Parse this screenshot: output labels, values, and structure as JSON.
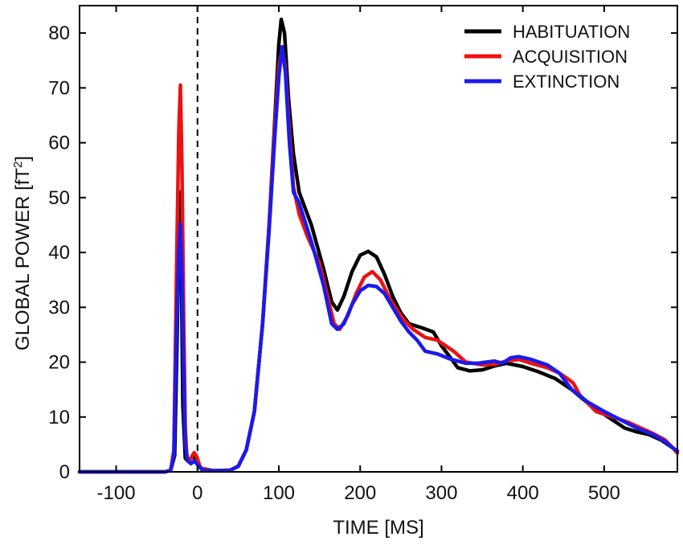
{
  "chart_data": {
    "type": "line",
    "xlabel": "TIME [MS]",
    "ylabel": "GLOBAL POWER [fT",
    "ylabel_superscript": "2",
    "ylabel_suffix": "]",
    "xlim": [
      -145,
      590
    ],
    "ylim": [
      0,
      85
    ],
    "xticks": [
      -100,
      0,
      100,
      200,
      300,
      400,
      500
    ],
    "yticks": [
      0,
      10,
      20,
      30,
      40,
      50,
      60,
      70,
      80
    ],
    "xtick_labels": [
      "-100",
      "0",
      "100",
      "200",
      "300",
      "400",
      "500"
    ],
    "ytick_labels": [
      "0",
      "10",
      "20",
      "30",
      "40",
      "50",
      "60",
      "70",
      "80"
    ],
    "stimulus_onset_x": 0,
    "grid": false,
    "legend_position": "top-right",
    "series": [
      {
        "name": "HABITUATION",
        "color": "#000000",
        "points": [
          [
            -145,
            0
          ],
          [
            -40,
            0
          ],
          [
            -33,
            0.3
          ],
          [
            -28,
            3
          ],
          [
            -25,
            25
          ],
          [
            -22,
            51
          ],
          [
            -20,
            40
          ],
          [
            -18,
            12
          ],
          [
            -15,
            2.5
          ],
          [
            -12,
            2
          ],
          [
            -8,
            2.5
          ],
          [
            -5,
            2.8
          ],
          [
            -2,
            2
          ],
          [
            2,
            1.2
          ],
          [
            5,
            0.6
          ],
          [
            20,
            0.2
          ],
          [
            40,
            0.3
          ],
          [
            50,
            1
          ],
          [
            60,
            4
          ],
          [
            70,
            11
          ],
          [
            80,
            27
          ],
          [
            88,
            45
          ],
          [
            95,
            64
          ],
          [
            100,
            78
          ],
          [
            103,
            82.5
          ],
          [
            107,
            80
          ],
          [
            112,
            68
          ],
          [
            118,
            58
          ],
          [
            125,
            51
          ],
          [
            140,
            45
          ],
          [
            155,
            37
          ],
          [
            165,
            31
          ],
          [
            172,
            29.5
          ],
          [
            180,
            32
          ],
          [
            190,
            36.5
          ],
          [
            200,
            39.5
          ],
          [
            210,
            40.2
          ],
          [
            220,
            39.2
          ],
          [
            230,
            36
          ],
          [
            240,
            32
          ],
          [
            250,
            29
          ],
          [
            260,
            27
          ],
          [
            275,
            26.3
          ],
          [
            290,
            25.5
          ],
          [
            300,
            23
          ],
          [
            310,
            21
          ],
          [
            320,
            19
          ],
          [
            335,
            18.4
          ],
          [
            350,
            18.6
          ],
          [
            365,
            19.3
          ],
          [
            380,
            19.8
          ],
          [
            400,
            19.2
          ],
          [
            420,
            18.2
          ],
          [
            440,
            17
          ],
          [
            460,
            15
          ],
          [
            480,
            12.5
          ],
          [
            500,
            10.5
          ],
          [
            510,
            9.5
          ],
          [
            525,
            8
          ],
          [
            540,
            7.3
          ],
          [
            555,
            6.8
          ],
          [
            570,
            5.8
          ],
          [
            585,
            4.3
          ],
          [
            590,
            3.8
          ]
        ]
      },
      {
        "name": "ACQUISITION",
        "color": "#ee1111",
        "points": [
          [
            -145,
            0
          ],
          [
            -40,
            0
          ],
          [
            -33,
            0.3
          ],
          [
            -29,
            4
          ],
          [
            -26,
            35
          ],
          [
            -23,
            62
          ],
          [
            -21,
            70.5
          ],
          [
            -19,
            55
          ],
          [
            -17,
            28
          ],
          [
            -15,
            8
          ],
          [
            -13,
            2.5
          ],
          [
            -10,
            2
          ],
          [
            -7,
            2.8
          ],
          [
            -4,
            3.5
          ],
          [
            -1,
            2.8
          ],
          [
            3,
            1
          ],
          [
            6,
            0.5
          ],
          [
            20,
            0.2
          ],
          [
            40,
            0.3
          ],
          [
            50,
            1
          ],
          [
            60,
            4
          ],
          [
            70,
            11
          ],
          [
            80,
            27
          ],
          [
            88,
            45
          ],
          [
            95,
            63
          ],
          [
            100,
            74
          ],
          [
            104,
            77
          ],
          [
            108,
            74
          ],
          [
            113,
            62
          ],
          [
            118,
            52
          ],
          [
            125,
            47
          ],
          [
            135,
            43
          ],
          [
            150,
            38
          ],
          [
            160,
            32
          ],
          [
            168,
            27
          ],
          [
            175,
            26
          ],
          [
            185,
            28.5
          ],
          [
            195,
            32.5
          ],
          [
            205,
            35.5
          ],
          [
            215,
            36.5
          ],
          [
            225,
            35
          ],
          [
            235,
            32
          ],
          [
            245,
            29.5
          ],
          [
            255,
            27.5
          ],
          [
            265,
            26
          ],
          [
            280,
            24.5
          ],
          [
            295,
            24
          ],
          [
            305,
            23
          ],
          [
            315,
            22
          ],
          [
            330,
            20
          ],
          [
            350,
            19.5
          ],
          [
            365,
            19.6
          ],
          [
            380,
            20.2
          ],
          [
            395,
            20.5
          ],
          [
            410,
            19.8
          ],
          [
            430,
            19
          ],
          [
            445,
            18
          ],
          [
            455,
            17
          ],
          [
            462,
            16.2
          ],
          [
            470,
            14
          ],
          [
            480,
            12.5
          ],
          [
            490,
            11
          ],
          [
            500,
            10.5
          ],
          [
            515,
            9.8
          ],
          [
            530,
            9
          ],
          [
            545,
            8
          ],
          [
            560,
            7
          ],
          [
            575,
            5.8
          ],
          [
            585,
            4.3
          ],
          [
            590,
            3.4
          ]
        ]
      },
      {
        "name": "EXTINCTION",
        "color": "#1a1aee",
        "points": [
          [
            -145,
            0
          ],
          [
            -40,
            0
          ],
          [
            -33,
            0.3
          ],
          [
            -29,
            3
          ],
          [
            -26,
            25
          ],
          [
            -23,
            40
          ],
          [
            -21,
            45.2
          ],
          [
            -19,
            35
          ],
          [
            -17,
            18
          ],
          [
            -15,
            5
          ],
          [
            -12,
            2
          ],
          [
            -8,
            1.5
          ],
          [
            -4,
            2
          ],
          [
            -1,
            1.5
          ],
          [
            3,
            0.8
          ],
          [
            6,
            0.3
          ],
          [
            20,
            0.2
          ],
          [
            40,
            0.3
          ],
          [
            50,
            1
          ],
          [
            60,
            4
          ],
          [
            70,
            11
          ],
          [
            80,
            27
          ],
          [
            88,
            44
          ],
          [
            95,
            61
          ],
          [
            100,
            72
          ],
          [
            104,
            77.5
          ],
          [
            108,
            73
          ],
          [
            113,
            60
          ],
          [
            118,
            51
          ],
          [
            125,
            49
          ],
          [
            140,
            42
          ],
          [
            155,
            34
          ],
          [
            165,
            27
          ],
          [
            172,
            26
          ],
          [
            180,
            27
          ],
          [
            190,
            30.5
          ],
          [
            200,
            33
          ],
          [
            210,
            34
          ],
          [
            220,
            33.8
          ],
          [
            230,
            32.5
          ],
          [
            240,
            30
          ],
          [
            250,
            27.5
          ],
          [
            260,
            25.5
          ],
          [
            270,
            24
          ],
          [
            280,
            22
          ],
          [
            295,
            21.5
          ],
          [
            310,
            20.6
          ],
          [
            330,
            19.8
          ],
          [
            345,
            19.8
          ],
          [
            355,
            20
          ],
          [
            365,
            20.2
          ],
          [
            375,
            19.8
          ],
          [
            385,
            20.8
          ],
          [
            395,
            21
          ],
          [
            410,
            20.5
          ],
          [
            430,
            19.5
          ],
          [
            445,
            18
          ],
          [
            460,
            15
          ],
          [
            480,
            12.7
          ],
          [
            500,
            11
          ],
          [
            520,
            9.5
          ],
          [
            540,
            8
          ],
          [
            560,
            6.8
          ],
          [
            575,
            5.5
          ],
          [
            585,
            4.3
          ],
          [
            590,
            3.8
          ]
        ]
      }
    ]
  }
}
